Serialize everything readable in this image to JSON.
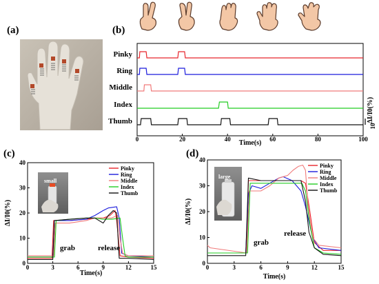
{
  "labels": {
    "a": "(a)",
    "b": "(b)",
    "c": "(c)",
    "d": "(d)"
  },
  "icons": [
    "hand-two-fingers-icon",
    "hand-three-fingers-icon",
    "hand-four-fingers-icon",
    "hand-five-fingers-icon",
    "hand-five-fingers-spread-icon"
  ],
  "chart_data": [
    {
      "id": "b",
      "type": "line",
      "xlabel": "Time(s)",
      "ylabel": "ΔI/I0(%)",
      "scalebar": "10",
      "xlim": [
        0,
        100
      ],
      "xticks": [
        0,
        20,
        40,
        60,
        80,
        100
      ],
      "series": [
        {
          "name": "Pinky",
          "color": "#e8242a",
          "x": [
            0,
            1,
            1.2,
            4,
            4.3,
            18,
            18.3,
            21,
            21.3,
            100
          ],
          "y": [
            0,
            0,
            1,
            1,
            0,
            0,
            1,
            1,
            0,
            0
          ]
        },
        {
          "name": "Ring",
          "color": "#1a1adc",
          "x": [
            0,
            1,
            1.2,
            4,
            4.3,
            18,
            18.3,
            21,
            21.3,
            100
          ],
          "y": [
            0,
            0,
            1,
            1,
            0,
            0,
            1,
            1,
            0,
            0
          ]
        },
        {
          "name": "Middle",
          "color": "#f07a7a",
          "x": [
            0,
            3,
            3.2,
            6,
            6.3,
            100
          ],
          "y": [
            0,
            0,
            1,
            1,
            0,
            0
          ]
        },
        {
          "name": "Index",
          "color": "#22cc22",
          "x": [
            0,
            36,
            36.4,
            40,
            40.3,
            100
          ],
          "y": [
            0,
            0,
            1,
            1,
            0,
            0
          ]
        },
        {
          "name": "Thumb",
          "color": "#111111",
          "x": [
            0,
            1.5,
            1.8,
            6,
            6.3,
            18,
            18.3,
            22,
            22.3,
            37,
            37.3,
            41,
            41.3,
            58,
            58.3,
            62,
            62.3,
            100
          ],
          "y": [
            0,
            0,
            1,
            1,
            0,
            0,
            1,
            1,
            0,
            0,
            1,
            1,
            0,
            0,
            1,
            1,
            0,
            0
          ]
        }
      ]
    },
    {
      "id": "c",
      "type": "line",
      "xlabel": "Time(s)",
      "ylabel": "ΔI/I0(%)",
      "xlim": [
        0,
        15
      ],
      "ylim": [
        0,
        40
      ],
      "xticks": [
        0,
        3,
        6,
        9,
        12,
        15
      ],
      "yticks": [
        0,
        10,
        20,
        30,
        40
      ],
      "inset_label": "small",
      "annotations": [
        "grab",
        "release"
      ],
      "series": [
        {
          "name": "Pinky",
          "color": "#e8242a",
          "x": [
            0,
            2.9,
            3.1,
            5,
            7,
            8,
            9,
            9.8,
            10.4,
            10.6,
            11,
            12,
            15
          ],
          "y": [
            2,
            2,
            17,
            17,
            17.5,
            18,
            18,
            19,
            21,
            17,
            3,
            2.5,
            2
          ]
        },
        {
          "name": "Ring",
          "color": "#1a1adc",
          "x": [
            0,
            3,
            3.2,
            5,
            7,
            8,
            9,
            9.6,
            10.6,
            10.9,
            11.2,
            12,
            15
          ],
          "y": [
            2.5,
            2.5,
            17,
            17,
            17.5,
            19,
            21,
            22,
            22.5,
            18,
            4,
            3,
            2.5
          ]
        },
        {
          "name": "Middle",
          "color": "#f07a7a",
          "x": [
            0,
            3.1,
            3.3,
            5,
            7,
            8,
            9,
            10,
            10.7,
            11,
            11.3,
            12,
            15
          ],
          "y": [
            3,
            3,
            16,
            16,
            17,
            18,
            18,
            18,
            19,
            10,
            4,
            3,
            3
          ]
        },
        {
          "name": "Index",
          "color": "#22cc22",
          "x": [
            0,
            3.2,
            3.4,
            5,
            7,
            8,
            9,
            10,
            11,
            11.3,
            11.6,
            12,
            15
          ],
          "y": [
            2.5,
            2.5,
            17,
            17.5,
            18,
            18,
            17.5,
            17.5,
            18,
            10,
            3,
            2.5,
            2.5
          ]
        },
        {
          "name": "Thumb",
          "color": "#111111",
          "x": [
            0,
            3,
            3.2,
            5,
            7,
            8,
            9,
            9.6,
            10.2,
            10.6,
            10.9,
            12,
            15
          ],
          "y": [
            1.5,
            1.5,
            17,
            17.5,
            18,
            18,
            16,
            19,
            21,
            20,
            2,
            2,
            1.5
          ]
        }
      ]
    },
    {
      "id": "d",
      "type": "line",
      "xlabel": "Time(s)",
      "ylabel": "ΔI/I0(%)",
      "xlim": [
        0,
        15
      ],
      "ylim": [
        0,
        40
      ],
      "xticks": [
        0,
        3,
        6,
        9,
        12,
        15
      ],
      "yticks": [
        0,
        10,
        20,
        30,
        40
      ],
      "inset_label": "large",
      "annotations": [
        "grab",
        "release"
      ],
      "series": [
        {
          "name": "Pinky",
          "color": "#e8242a",
          "x": [
            0,
            4.4,
            4.6,
            6,
            8,
            9.5,
            10.5,
            11,
            11.5,
            12,
            13,
            15
          ],
          "y": [
            4,
            4,
            32,
            32,
            32,
            32,
            32,
            31,
            20,
            8,
            5,
            5
          ]
        },
        {
          "name": "Ring",
          "color": "#1a1adc",
          "x": [
            0,
            4.3,
            4.6,
            5,
            6,
            7,
            8,
            8.5,
            9.5,
            10.5,
            11,
            11.8,
            12.5,
            15
          ],
          "y": [
            4,
            4,
            27,
            30,
            29,
            31,
            33,
            33.5,
            32,
            28,
            22,
            10,
            6,
            5
          ]
        },
        {
          "name": "Middle",
          "color": "#f07a7a",
          "x": [
            0,
            0.3,
            4.4,
            4.7,
            6,
            7,
            8,
            9,
            9.6,
            10.2,
            10.7,
            11,
            11.3,
            11.8,
            12.5,
            15
          ],
          "y": [
            7,
            6,
            4,
            28,
            28,
            30,
            33,
            34,
            36,
            37.5,
            38,
            36,
            22,
            10,
            7,
            6
          ]
        },
        {
          "name": "Index",
          "color": "#22cc22",
          "x": [
            0,
            4.5,
            4.8,
            6,
            8,
            10,
            10.6,
            11,
            11.5,
            12,
            13,
            15
          ],
          "y": [
            4,
            4,
            31,
            31,
            31,
            31,
            31,
            28,
            15,
            6,
            4,
            3.5
          ]
        },
        {
          "name": "Thumb",
          "color": "#111111",
          "x": [
            0,
            4.3,
            4.6,
            6,
            8,
            9.5,
            10.5,
            11,
            11.4,
            12,
            13,
            15
          ],
          "y": [
            3,
            3,
            33,
            32,
            32,
            32,
            32,
            24,
            12,
            6,
            3.5,
            3
          ]
        }
      ]
    }
  ]
}
